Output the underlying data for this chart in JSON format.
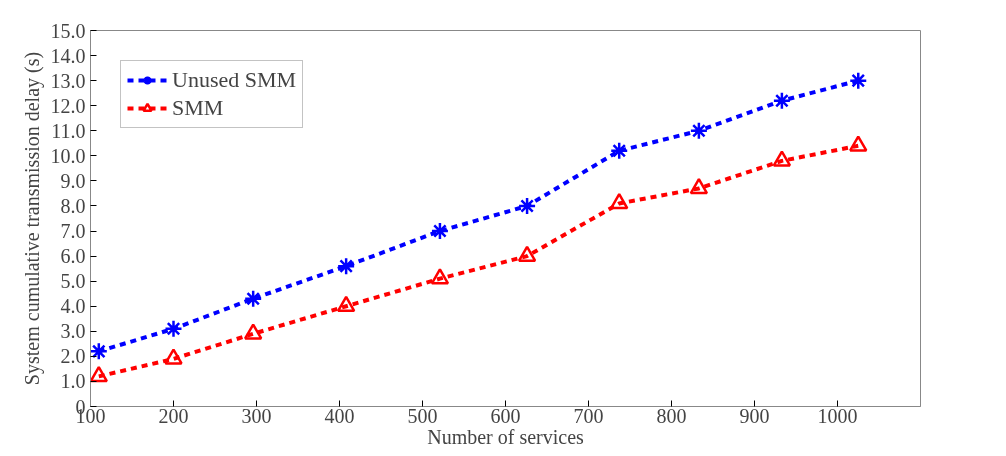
{
  "chart_data": {
    "type": "line",
    "xlabel": "Number of services",
    "ylabel": "System cumulative transmission delay (s)",
    "xlim": [
      100,
      1100
    ],
    "xticks": [
      100,
      200,
      300,
      400,
      500,
      600,
      700,
      800,
      900,
      1000
    ],
    "ylim": [
      0,
      15
    ],
    "yticks": [
      0,
      {
        "value": 1,
        "label": "1.0"
      },
      {
        "value": 2,
        "label": "2.0"
      },
      {
        "value": 3,
        "label": "3.0"
      },
      {
        "value": 4,
        "label": "4.0"
      },
      {
        "value": 5,
        "label": "5.0"
      },
      {
        "value": 6,
        "label": "6.0"
      },
      {
        "value": 7,
        "label": "7.0"
      },
      {
        "value": 8,
        "label": "8.0"
      },
      {
        "value": 9,
        "label": "9.0"
      },
      {
        "value": 10,
        "label": "10.0"
      },
      {
        "value": 11,
        "label": "11.0"
      },
      {
        "value": 12,
        "label": "12.0"
      },
      {
        "value": 13,
        "label": "13.0"
      },
      {
        "value": 14,
        "label": "14.0"
      },
      {
        "value": 15,
        "label": "15.0"
      }
    ],
    "x": [
      110,
      200,
      296,
      408,
      521,
      626,
      737,
      833,
      933,
      1025
    ],
    "series": [
      {
        "name": "Unused SMM",
        "color": "#0000ff",
        "marker": "cross",
        "values": [
          2.2,
          3.1,
          4.3,
          5.6,
          7.0,
          8.0,
          10.2,
          11.0,
          12.2,
          13.0
        ]
      },
      {
        "name": "SMM",
        "color": "#ff0000",
        "marker": "triangle",
        "values": [
          1.2,
          1.9,
          2.9,
          4.0,
          5.1,
          6.0,
          8.1,
          8.7,
          9.8,
          10.4
        ]
      }
    ],
    "line_style": "dashed",
    "legend": "top left",
    "grid": false
  }
}
